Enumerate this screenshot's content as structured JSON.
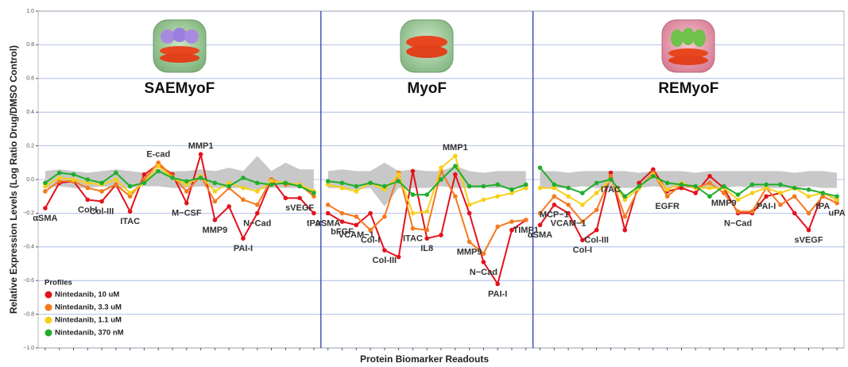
{
  "ylabel": "Relative Expression Levels (Log Ratio Drug/DMSO Control)",
  "xlabel": "Protein Biomarker Readouts",
  "legend_title": "Profiles",
  "legend": "lower left",
  "grid": true,
  "ylim": [
    -1,
    1
  ],
  "yticks": [
    {
      "value": -1,
      "label": "−1.0"
    },
    {
      "value": -0.8,
      "label": "−0.8"
    },
    {
      "value": -0.6,
      "label": "−0.6"
    },
    {
      "value": -0.4,
      "label": "−0.4"
    },
    {
      "value": -0.2,
      "label": "−0.2"
    },
    {
      "value": 0,
      "label": "0.0"
    },
    0.2,
    0.4,
    0.6,
    0.8,
    {
      "value": 1,
      "label": "1.0"
    }
  ],
  "chart_data": [
    {
      "type": "line",
      "title": "SAEMyoF",
      "categories": [
        "αSMA",
        null,
        null,
        "Col-I",
        "Col-III",
        null,
        "ITAC",
        null,
        "E-cad",
        null,
        "M−CSF",
        "MMP1",
        "MMP9",
        null,
        "PAI-I",
        "N−Cad",
        null,
        null,
        "sVEGF",
        "tPA"
      ],
      "band": {
        "color": "#c8c8c8",
        "upper": [
          0.05,
          0.06,
          0.05,
          0.04,
          0.05,
          0.06,
          0.05,
          0.04,
          0.06,
          0.05,
          0.05,
          0.06,
          0.05,
          0.07,
          0.05,
          0.14,
          0.05,
          0.1,
          0.06,
          0.06
        ],
        "lower": [
          -0.05,
          -0.04,
          -0.05,
          -0.05,
          -0.04,
          -0.05,
          -0.05,
          -0.04,
          -0.04,
          -0.05,
          -0.05,
          -0.04,
          -0.05,
          -0.05,
          -0.05,
          -0.06,
          -0.05,
          -0.05,
          -0.05,
          -0.06
        ]
      },
      "series": [
        {
          "name": "Nintedanib, 10 uM",
          "color": "#e3121b",
          "values": [
            -0.17,
            -0.02,
            -0.01,
            -0.12,
            -0.13,
            -0.03,
            -0.19,
            0.03,
            0.09,
            0.03,
            -0.14,
            0.15,
            -0.24,
            -0.16,
            -0.35,
            -0.2,
            0.0,
            -0.11,
            -0.11,
            -0.2
          ]
        },
        {
          "name": "Nintedanib, 3.3 uM",
          "color": "#f47a1f",
          "values": [
            -0.07,
            -0.01,
            -0.01,
            -0.05,
            -0.07,
            -0.03,
            -0.1,
            0.0,
            0.1,
            0.02,
            -0.07,
            0.02,
            -0.13,
            -0.05,
            -0.12,
            -0.15,
            0.0,
            -0.03,
            -0.03,
            -0.1
          ]
        },
        {
          "name": "Nintedanib, 1.1 uM",
          "color": "#f7cf18",
          "values": [
            -0.04,
            0.01,
            0.0,
            -0.02,
            -0.03,
            0.0,
            -0.08,
            -0.02,
            0.08,
            0.01,
            -0.03,
            0.02,
            -0.07,
            -0.02,
            -0.05,
            -0.07,
            -0.01,
            -0.02,
            -0.03,
            -0.07
          ]
        },
        {
          "name": "Nintedanib, 370 nM",
          "color": "#1fae2c",
          "values": [
            -0.02,
            0.04,
            0.03,
            0.0,
            -0.02,
            0.04,
            -0.04,
            -0.02,
            0.05,
            0.01,
            -0.01,
            0.01,
            -0.02,
            -0.04,
            0.01,
            -0.02,
            -0.03,
            -0.02,
            -0.04,
            -0.08
          ]
        }
      ]
    },
    {
      "type": "line",
      "title": "MyoF",
      "categories": [
        "αSMA",
        "bFGF",
        "VCAM−1",
        "Col-I",
        "Col-III",
        null,
        "ITAC",
        "IL8",
        null,
        "MMP1",
        "MMP9",
        "N−Cad",
        "PAI-I",
        null,
        "TIMP1"
      ],
      "band": {
        "color": "#c8c8c8",
        "upper": [
          0.05,
          0.06,
          0.05,
          0.05,
          0.1,
          0.05,
          0.06,
          0.05,
          0.05,
          0.08,
          0.05,
          0.04,
          0.05,
          0.05,
          0.05
        ],
        "lower": [
          -0.05,
          -0.05,
          -0.06,
          -0.05,
          -0.16,
          -0.05,
          -0.05,
          -0.05,
          -0.04,
          -0.05,
          -0.05,
          -0.05,
          -0.05,
          -0.05,
          -0.05
        ]
      },
      "series": [
        {
          "name": "Nintedanib, 10 uM",
          "color": "#e3121b",
          "values": [
            -0.2,
            -0.25,
            -0.27,
            -0.2,
            -0.42,
            -0.46,
            0.05,
            -0.35,
            -0.33,
            0.03,
            -0.2,
            -0.49,
            -0.62,
            -0.3,
            -0.24
          ]
        },
        {
          "name": "Nintedanib, 3.3 uM",
          "color": "#f47a1f",
          "values": [
            -0.15,
            -0.2,
            -0.22,
            -0.3,
            -0.22,
            0.04,
            -0.29,
            -0.3,
            0.05,
            -0.1,
            -0.37,
            -0.44,
            -0.28,
            -0.25,
            -0.24
          ]
        },
        {
          "name": "Nintedanib, 1.1 uM",
          "color": "#f7cf18",
          "values": [
            -0.03,
            -0.05,
            -0.07,
            -0.02,
            -0.06,
            0.03,
            -0.2,
            -0.19,
            0.07,
            0.14,
            -0.15,
            -0.12,
            -0.1,
            -0.08,
            -0.05
          ]
        },
        {
          "name": "Nintedanib, 370 nM",
          "color": "#1fae2c",
          "values": [
            -0.01,
            -0.02,
            -0.04,
            -0.02,
            -0.04,
            -0.01,
            -0.09,
            -0.09,
            0.0,
            0.08,
            -0.04,
            -0.04,
            -0.03,
            -0.06,
            -0.03
          ]
        }
      ]
    },
    {
      "type": "line",
      "title": "REMyoF",
      "categories": [
        "αSMA",
        "MCP−1",
        "VCAM−1",
        "Col-I",
        "Col-III",
        "ITAC",
        null,
        null,
        null,
        "EGFR",
        null,
        null,
        null,
        "MMP9",
        "N−Cad",
        null,
        "PAI-I",
        null,
        null,
        "sVEGF",
        "tPA",
        "uPA"
      ],
      "band": {
        "color": "#c8c8c8",
        "upper": [
          0.05,
          0.05,
          0.04,
          0.05,
          0.05,
          0.05,
          0.05,
          0.04,
          0.05,
          0.05,
          0.05,
          0.04,
          0.05,
          0.05,
          0.05,
          0.05,
          0.05,
          0.05,
          0.04,
          0.05,
          0.05,
          0.04
        ],
        "lower": [
          -0.05,
          -0.05,
          -0.05,
          -0.04,
          -0.05,
          -0.05,
          -0.05,
          -0.05,
          -0.04,
          -0.05,
          -0.05,
          -0.05,
          -0.05,
          -0.05,
          -0.04,
          -0.05,
          -0.05,
          -0.05,
          -0.05,
          -0.04,
          -0.05,
          -0.05
        ]
      },
      "series": [
        {
          "name": "Nintedanib, 10 uM",
          "color": "#e3121b",
          "values": [
            -0.27,
            -0.15,
            -0.2,
            -0.36,
            -0.3,
            0.04,
            -0.3,
            -0.02,
            0.06,
            -0.07,
            -0.05,
            -0.08,
            0.02,
            -0.05,
            -0.2,
            -0.2,
            -0.1,
            -0.08,
            -0.2,
            -0.3,
            -0.08,
            -0.12
          ]
        },
        {
          "name": "Nintedanib, 3.3 uM",
          "color": "#f47a1f",
          "values": [
            -0.2,
            -0.1,
            -0.15,
            -0.25,
            -0.18,
            0.02,
            -0.22,
            -0.05,
            0.04,
            -0.1,
            -0.03,
            -0.05,
            -0.02,
            -0.08,
            -0.19,
            -0.19,
            -0.05,
            -0.15,
            -0.1,
            -0.2,
            -0.1,
            -0.14
          ]
        },
        {
          "name": "Nintedanib, 1.1 uM",
          "color": "#f7cf18",
          "values": [
            -0.05,
            -0.05,
            -0.1,
            -0.15,
            -0.08,
            0.0,
            -0.12,
            -0.05,
            0.03,
            -0.06,
            -0.02,
            -0.05,
            -0.05,
            -0.05,
            -0.12,
            -0.08,
            -0.05,
            -0.08,
            -0.05,
            -0.1,
            -0.08,
            -0.12
          ]
        },
        {
          "name": "Nintedanib, 370 nM",
          "color": "#1fae2c",
          "values": [
            0.07,
            -0.03,
            -0.05,
            -0.08,
            -0.02,
            0.0,
            -0.1,
            -0.04,
            0.02,
            -0.02,
            -0.03,
            -0.04,
            -0.1,
            -0.04,
            -0.09,
            -0.03,
            -0.03,
            -0.03,
            -0.05,
            -0.06,
            -0.08,
            -0.1
          ]
        }
      ]
    }
  ]
}
